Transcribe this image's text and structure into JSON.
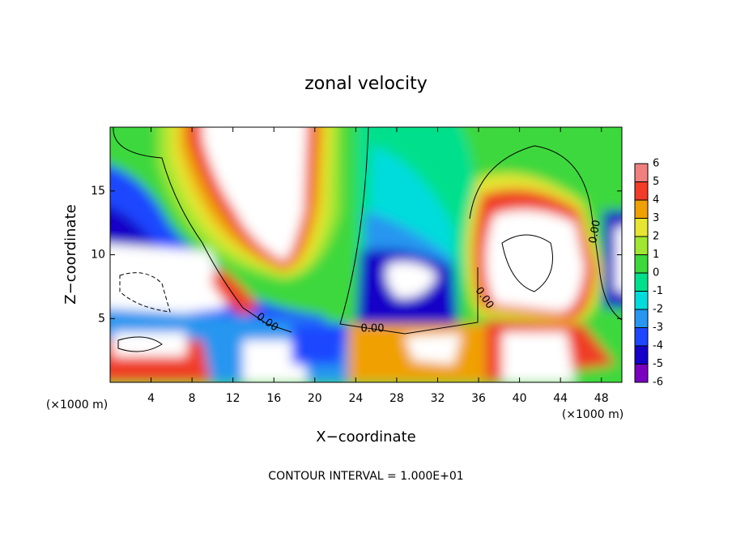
{
  "chart_data": {
    "type": "contour",
    "title": "zonal velocity",
    "x_label": "X−coordinate",
    "y_label": "Z−coordinate",
    "x_unit": "(×1000 m)",
    "x_unit_right": "(×1000 m)",
    "footer": "CONTOUR INTERVAL = 1.000E+01",
    "xlim": [
      0,
      50
    ],
    "xticks": [
      4,
      8,
      12,
      16,
      20,
      24,
      28,
      32,
      36,
      40,
      44,
      48
    ],
    "ylim": [
      0,
      20
    ],
    "yticks": [
      5,
      10,
      15
    ],
    "colorbar": {
      "levels": [
        -6,
        -5,
        -4,
        -3,
        -2,
        -1,
        0,
        1,
        2,
        3,
        4,
        5,
        6
      ],
      "colors": [
        "#7a00c0",
        "#1400c8",
        "#1e46ff",
        "#2896f0",
        "#00dcdc",
        "#00e08c",
        "#3cd83c",
        "#a0e632",
        "#e6e632",
        "#f0a000",
        "#f03c28",
        "#f08080"
      ]
    },
    "contour_labels": [
      "0.00",
      "0.00",
      "0.00",
      "0.00"
    ]
  }
}
